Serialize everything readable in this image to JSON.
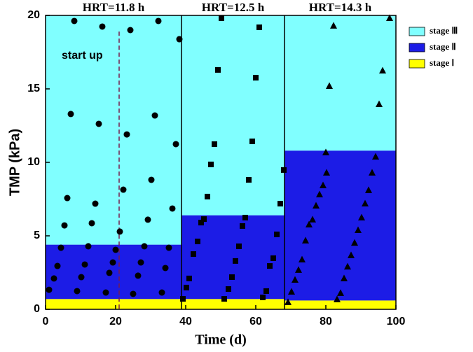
{
  "chart_data": {
    "type": "scatter",
    "xlabel": "Time (d)",
    "ylabel": "TMP (kPa)",
    "xlim": [
      0,
      100
    ],
    "xticks": [
      0,
      20,
      40,
      60,
      80,
      100
    ],
    "ylim": [
      0,
      20
    ],
    "yticks": [
      0,
      5,
      10,
      15,
      20
    ],
    "periods": [
      "HRT=11.8 h",
      "HRT=12.5 h",
      "HRT=14.3 h"
    ],
    "period_edges": [
      0,
      38.8,
      68.2,
      100
    ],
    "stages": [
      {
        "name": "stage Ⅰ",
        "color": "#ffff00",
        "values": [
          0.7,
          0.7,
          0.6
        ]
      },
      {
        "name": "stage Ⅱ",
        "color": "#1c1ce6",
        "values": [
          3.7,
          5.7,
          10.2
        ]
      },
      {
        "name": "stage Ⅲ",
        "color": "#80ffff",
        "values": [
          15.6,
          13.6,
          9.2
        ]
      }
    ],
    "annotation": {
      "text": "start up",
      "x": 21,
      "y_top": 18.9
    },
    "series": [
      {
        "marker": "circle",
        "color": "#000000",
        "x": [
          1,
          2.4,
          3.4,
          4.4,
          5.4,
          6.2,
          7.2,
          8.2,
          9,
          10.2,
          11.2,
          12.2,
          13.2,
          14.2,
          15.2,
          16.2,
          17.2,
          18.2,
          19.2,
          20,
          21.2,
          22.2,
          23.2,
          24.2,
          25,
          26.4,
          27.2,
          28.2,
          29.2,
          30.2,
          31.2,
          32.2,
          33.2,
          34.2,
          35.2,
          36.2,
          37.2,
          38.2
        ],
        "y": [
          1.33,
          2.1,
          2.95,
          4.19,
          5.71,
          7.57,
          13.29,
          19.62,
          1.24,
          2.19,
          3.05,
          4.29,
          5.86,
          7.19,
          12.62,
          19.24,
          1.14,
          2.48,
          3.19,
          4.05,
          5.29,
          8.14,
          11.9,
          19,
          1.05,
          2.29,
          3.19,
          4.29,
          6.1,
          8.81,
          13.19,
          19.62,
          1.14,
          2.81,
          4.19,
          6.86,
          11.24,
          18.38
        ]
      },
      {
        "marker": "square",
        "color": "#000000",
        "x": [
          39.2,
          40.2,
          41,
          42.2,
          43.4,
          44.4,
          45.2,
          46.2,
          47.2,
          48.2,
          49.2,
          50.2,
          51,
          52.2,
          53.2,
          54.2,
          55.2,
          56.2,
          57,
          58,
          59,
          60,
          61,
          62,
          63,
          64,
          65,
          66,
          67,
          68
        ],
        "y": [
          0.71,
          1.48,
          2.1,
          3.76,
          4.62,
          5.9,
          6.14,
          7.67,
          9.86,
          11.24,
          16.29,
          19.81,
          0.71,
          1.38,
          2.19,
          3.29,
          4.29,
          5.67,
          6.24,
          8.81,
          11.43,
          15.76,
          19.19,
          0.81,
          1.24,
          2.95,
          3.48,
          5.1,
          7.19,
          9.48
        ]
      },
      {
        "marker": "triangle",
        "color": "#000000",
        "x": [
          69.2,
          70.2,
          71.2,
          72.2,
          73.2,
          74.2,
          75.2,
          76.2,
          77.2,
          78.2,
          79.2,
          80.2,
          80,
          81,
          82.2,
          83.2,
          84.2,
          85.2,
          86.2,
          87.2,
          88.2,
          89.2,
          90.2,
          91.2,
          92.2,
          93.2,
          94.2,
          95.2,
          96.2,
          98.2
        ],
        "y": [
          0.48,
          1.19,
          2,
          2.67,
          3.38,
          4.67,
          5.76,
          6.1,
          7.05,
          7.81,
          8.43,
          9.29,
          10.67,
          15.19,
          19.29,
          0.67,
          1.1,
          2.1,
          2.9,
          3.67,
          4.52,
          5.38,
          6.24,
          7.19,
          8.1,
          9.29,
          10.38,
          13.95,
          16.24,
          19.81
        ]
      }
    ]
  }
}
